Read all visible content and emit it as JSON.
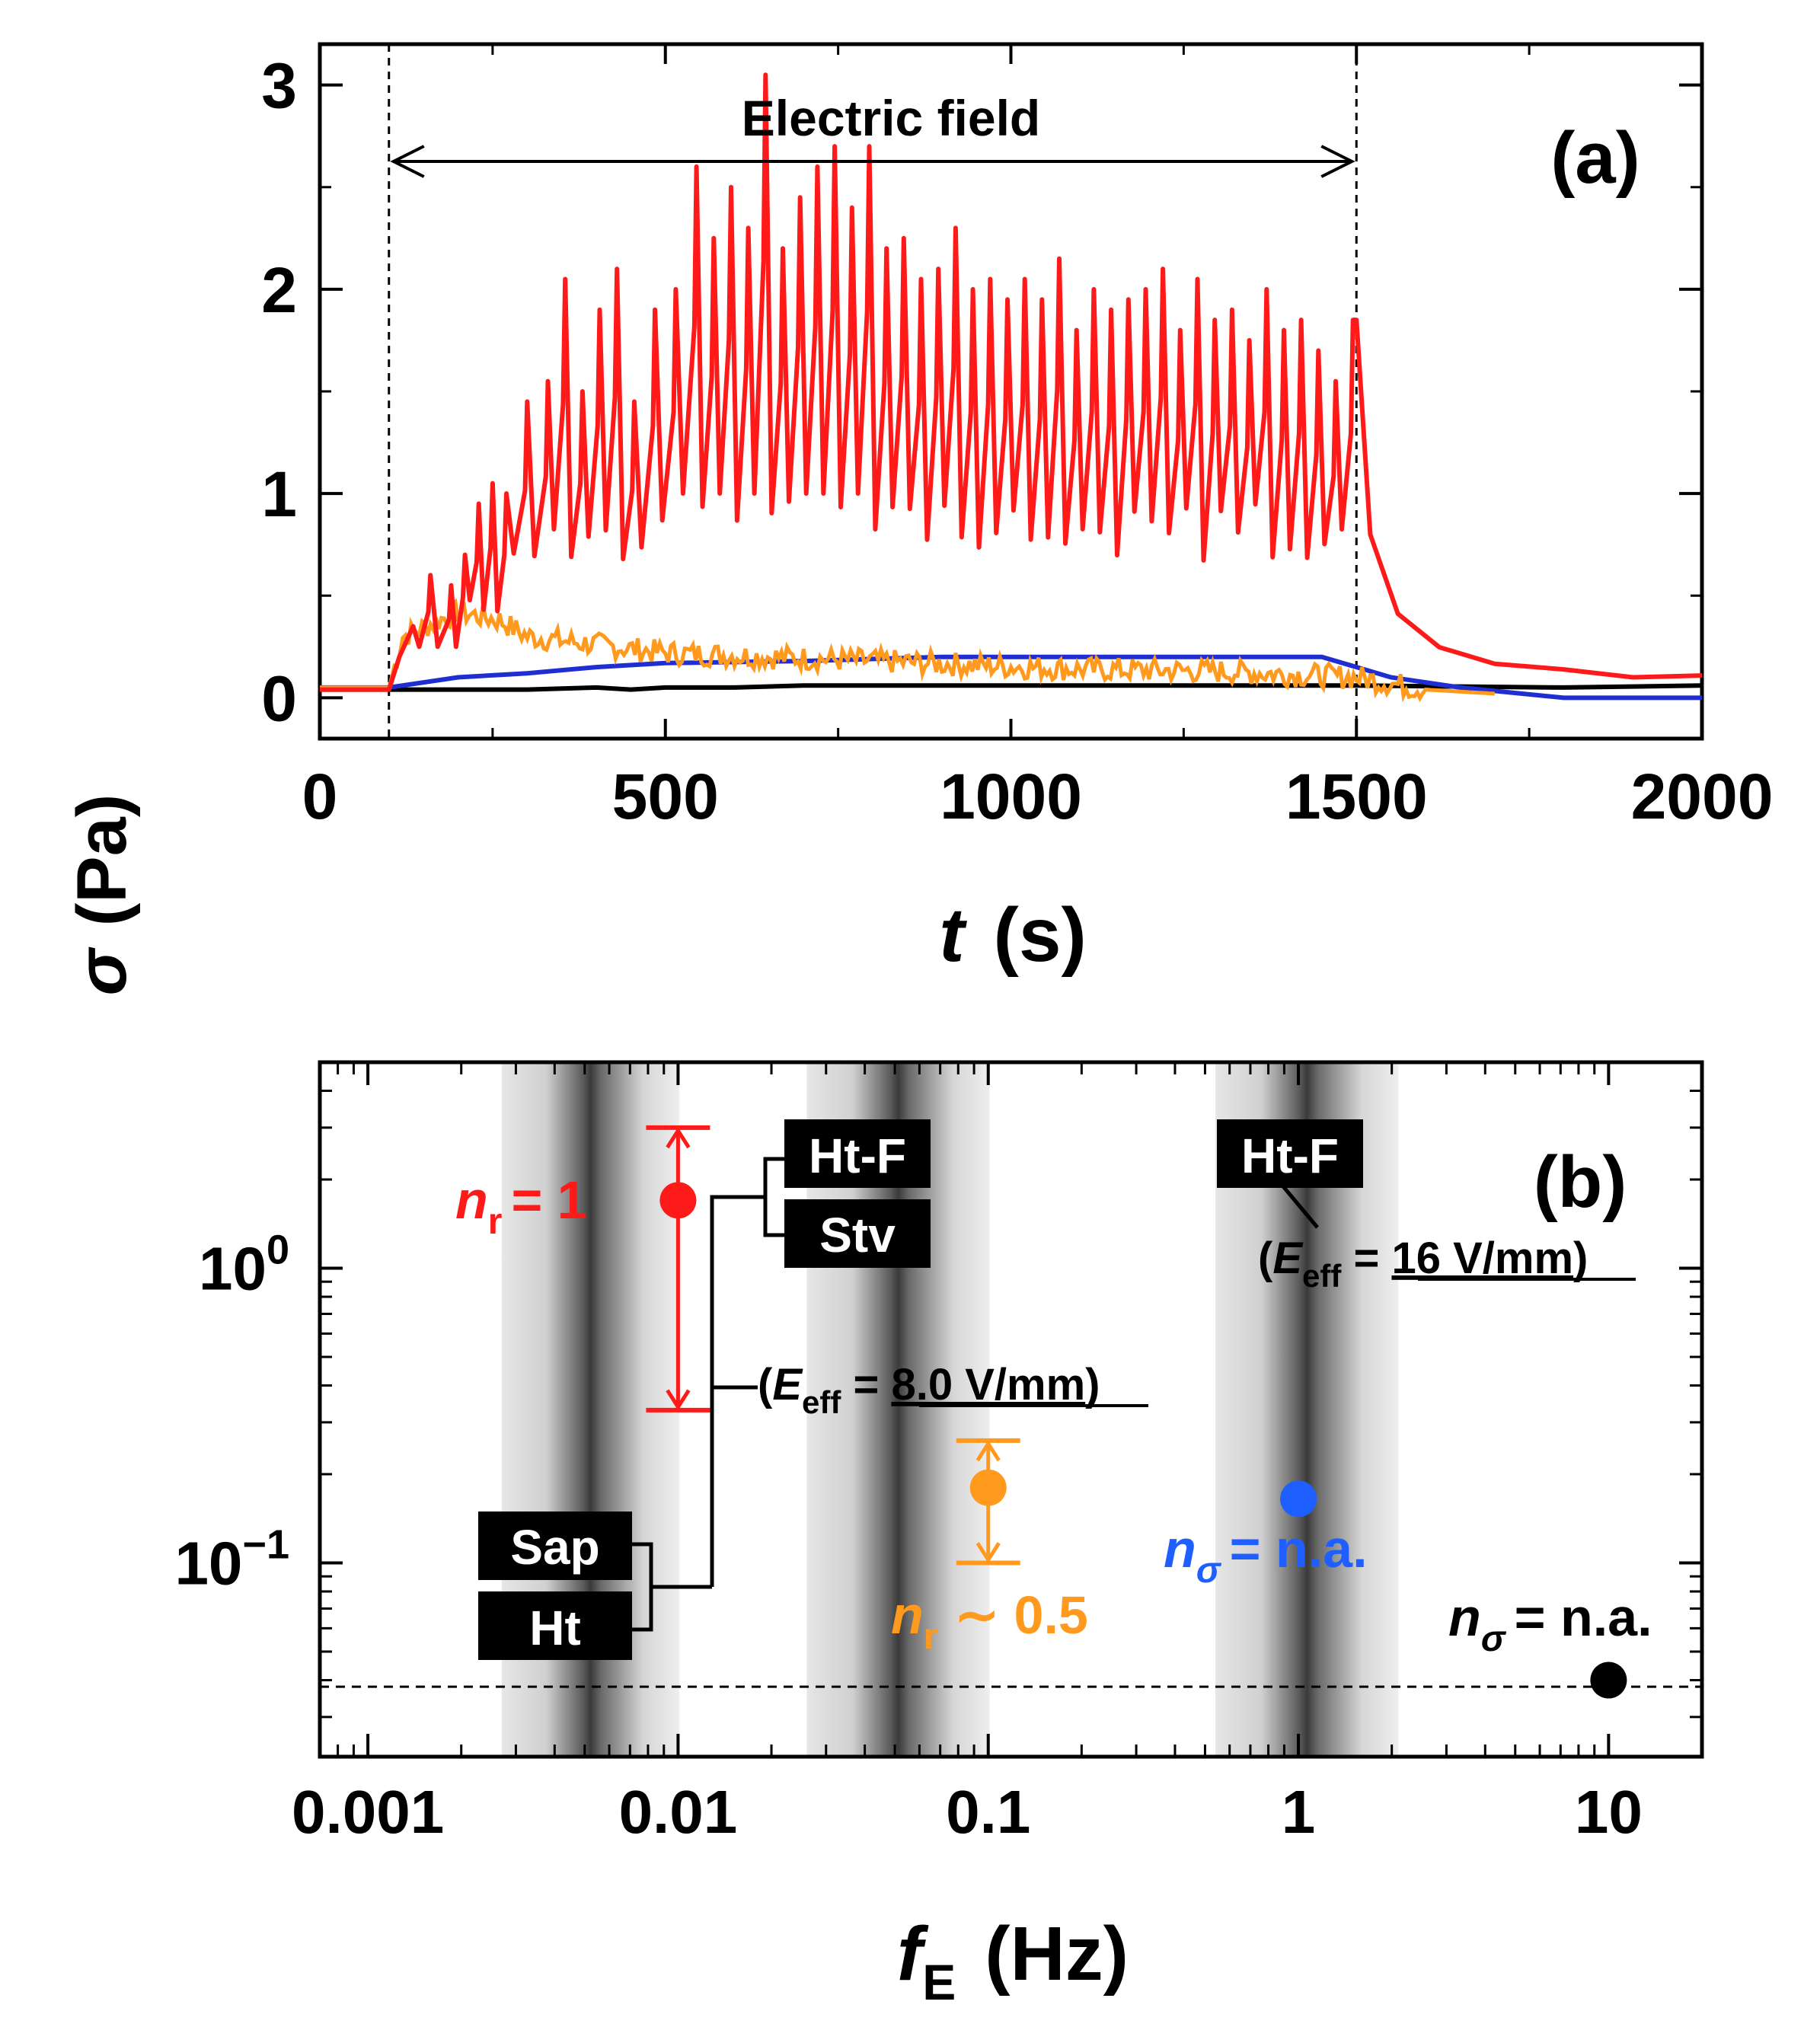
{
  "y_axis_label": {
    "symbol": "σ",
    "unit": "(Pa)"
  },
  "chart_data": [
    {
      "panel": "(a)",
      "type": "line",
      "xlabel": {
        "symbol": "t",
        "unit": "(s)"
      },
      "xlim": [
        0,
        2000
      ],
      "ylim": [
        -0.2,
        3.2
      ],
      "xticks": [
        0,
        500,
        1000,
        1500,
        2000
      ],
      "yticks": [
        0,
        1,
        2,
        3
      ],
      "field_on": 100,
      "field_off": 1500,
      "field_label": "Electric field",
      "series": [
        {
          "name": "red",
          "color": "#ff1a1a",
          "peaks_x": [
            160,
            190,
            210,
            230,
            250,
            270,
            300,
            330,
            355,
            380,
            405,
            430,
            455,
            485,
            515,
            545,
            570,
            595,
            620,
            645,
            670,
            695,
            720,
            745,
            770,
            795,
            820,
            845,
            870,
            895,
            920,
            945,
            970,
            995,
            1020,
            1045,
            1070,
            1095,
            1120,
            1145,
            1170,
            1195,
            1220,
            1245,
            1270,
            1295,
            1320,
            1345,
            1370,
            1395,
            1420,
            1445,
            1470,
            1495
          ],
          "peaks_y": [
            0.6,
            0.55,
            0.7,
            0.95,
            1.05,
            1.0,
            1.45,
            1.55,
            2.05,
            1.5,
            1.9,
            2.1,
            1.45,
            1.9,
            2.0,
            2.6,
            2.25,
            2.5,
            2.3,
            3.05,
            2.2,
            2.45,
            2.6,
            2.7,
            2.4,
            2.7,
            2.2,
            2.25,
            2.05,
            2.1,
            2.3,
            2.0,
            2.05,
            1.95,
            2.05,
            1.95,
            2.15,
            1.8,
            2.0,
            1.9,
            1.95,
            2.0,
            2.1,
            1.8,
            2.05,
            1.85,
            1.9,
            1.75,
            2.0,
            1.8,
            1.85,
            1.7,
            1.55,
            1.85
          ],
          "tail": [
            [
              1500,
              1.85
            ],
            [
              1520,
              0.8
            ],
            [
              1560,
              0.4
            ],
            [
              1620,
              0.25
            ],
            [
              1700,
              0.17
            ],
            [
              1800,
              0.13
            ],
            [
              1900,
              0.11
            ],
            [
              2000,
              0.1
            ]
          ]
        },
        {
          "name": "orange",
          "color": "#ff9a1f",
          "points": [
            [
              0,
              0.05
            ],
            [
              100,
              0.05
            ],
            [
              120,
              0.3
            ],
            [
              200,
              0.42
            ],
            [
              260,
              0.38
            ],
            [
              300,
              0.3
            ],
            [
              500,
              0.22
            ],
            [
              800,
              0.18
            ],
            [
              1100,
              0.14
            ],
            [
              1300,
              0.13
            ],
            [
              1500,
              0.1
            ],
            [
              1600,
              0.04
            ],
            [
              1700,
              0.02
            ]
          ]
        },
        {
          "name": "blue",
          "color": "#1f2ed1",
          "points": [
            [
              0,
              0.05
            ],
            [
              100,
              0.05
            ],
            [
              200,
              0.1
            ],
            [
              300,
              0.12
            ],
            [
              400,
              0.15
            ],
            [
              500,
              0.17
            ],
            [
              700,
              0.18
            ],
            [
              900,
              0.2
            ],
            [
              1100,
              0.2
            ],
            [
              1300,
              0.2
            ],
            [
              1450,
              0.2
            ],
            [
              1550,
              0.1
            ],
            [
              1650,
              0.05
            ],
            [
              1800,
              0.0
            ],
            [
              2000,
              0.0
            ]
          ]
        },
        {
          "name": "black",
          "color": "#000000",
          "points": [
            [
              0,
              0.04
            ],
            [
              300,
              0.04
            ],
            [
              400,
              0.05
            ],
            [
              450,
              0.04
            ],
            [
              500,
              0.05
            ],
            [
              600,
              0.05
            ],
            [
              700,
              0.06
            ],
            [
              800,
              0.06
            ],
            [
              1000,
              0.06
            ],
            [
              1500,
              0.06
            ],
            [
              1800,
              0.05
            ],
            [
              2000,
              0.06
            ]
          ]
        }
      ]
    },
    {
      "panel": "(b)",
      "type": "scatter",
      "xscale": "log",
      "yscale": "log",
      "xlabel": {
        "symbol": "f",
        "subscript": "E",
        "unit": "(Hz)"
      },
      "xlim": [
        0.0007,
        20
      ],
      "ylim": [
        0.022,
        5
      ],
      "xticks": [
        {
          "value": 0.001,
          "label": "0.001"
        },
        {
          "value": 0.01,
          "label": "0.01"
        },
        {
          "value": 0.1,
          "label": "0.1"
        },
        {
          "value": 1,
          "label": "1"
        },
        {
          "value": 10,
          "label": "10"
        }
      ],
      "yticks": [
        {
          "value": 1,
          "base": "10",
          "exp": "0"
        },
        {
          "value": 0.1,
          "base": "10",
          "exp": "−1"
        }
      ],
      "baseline_y": 0.038,
      "bands": [
        {
          "center": 0.005,
          "min": 0.0027,
          "max": 0.0101
        },
        {
          "center": 0.048,
          "min": 0.026,
          "max": 0.101
        },
        {
          "center": 1.0,
          "min": 0.54,
          "max": 2.1
        }
      ],
      "points": [
        {
          "x": 0.01,
          "y": 1.7,
          "ylow": 0.33,
          "yhigh": 3.0,
          "color": "#ff1a1a"
        },
        {
          "x": 0.1,
          "y": 0.18,
          "ylow": 0.1,
          "yhigh": 0.26,
          "color": "#ff9a1f"
        },
        {
          "x": 1.0,
          "y": 0.165,
          "color": "#1f5fff"
        },
        {
          "x": 10.0,
          "y": 0.04,
          "color": "#000000"
        }
      ],
      "labels": {
        "red_n": "n",
        "red_sub": "r",
        "red_val": "= 1",
        "orange_n": "n",
        "orange_sub": "r",
        "orange_val": "∼ 0.5",
        "blue_n": "n",
        "blue_sub": "σ",
        "blue_val": "= n.a.",
        "black_n": "n",
        "black_sub": "σ",
        "black_val": "= n.a.",
        "eff_mid": {
          "open": "(",
          "E": "E",
          "sub": "eff",
          "eq": " = ",
          "value": "8.0 V/mm",
          "close": ")"
        },
        "eff_right": {
          "open": "(",
          "E": "E",
          "sub": "eff",
          "eq": " = ",
          "value": "16 V/mm",
          "close": ")"
        },
        "box_htf1": "Ht-F",
        "box_stv": "Stv",
        "box_htf2": "Ht-F",
        "box_sap": "Sap",
        "box_ht": "Ht"
      }
    }
  ]
}
